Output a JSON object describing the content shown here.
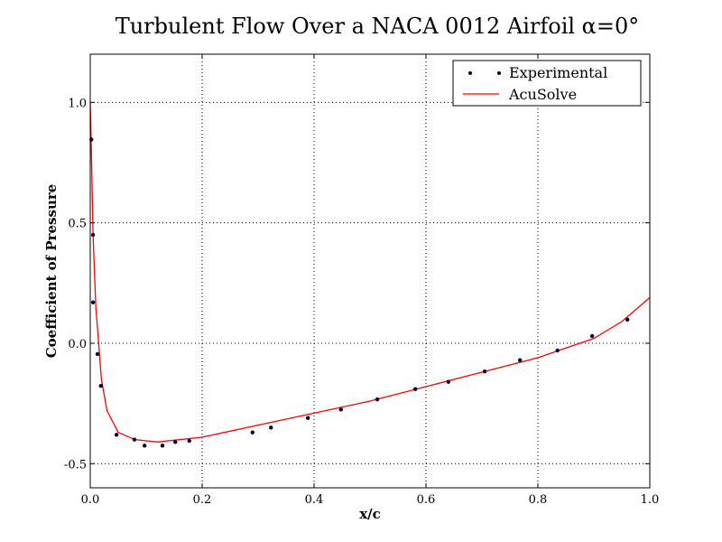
{
  "chart_data": {
    "type": "line",
    "title": "Turbulent Flow Over a NACA 0012 Airfoil α=0°",
    "xlabel": "x/c",
    "ylabel": "Coefficient of Pressure",
    "xlim": [
      0,
      1.0
    ],
    "ylim": [
      -0.6,
      1.2
    ],
    "grid": true,
    "legend_placement": "top-right",
    "xticks": [
      "0.0",
      "0.2",
      "0.4",
      "0.6",
      "0.8",
      "1.0"
    ],
    "xtick_values": [
      0,
      0.2,
      0.4,
      0.6,
      0.8,
      1.0
    ],
    "yticks": [
      "-0.5",
      "0.0",
      "0.5",
      "1.0"
    ],
    "ytick_values": [
      -0.5,
      0,
      0.5,
      1.0
    ],
    "series": [
      {
        "name": "Experimental",
        "kind": "scatter",
        "color": "#000033",
        "x": [
          0.002,
          0.005,
          0.005,
          0.013,
          0.019,
          0.047,
          0.079,
          0.097,
          0.129,
          0.152,
          0.177,
          0.29,
          0.323,
          0.389,
          0.448,
          0.513,
          0.581,
          0.64,
          0.705,
          0.768,
          0.835,
          0.897,
          0.96
        ],
        "y": [
          0.846,
          0.45,
          0.17,
          -0.045,
          -0.177,
          -0.38,
          -0.4,
          -0.425,
          -0.425,
          -0.41,
          -0.405,
          -0.37,
          -0.35,
          -0.31,
          -0.275,
          -0.233,
          -0.19,
          -0.16,
          -0.117,
          -0.07,
          -0.03,
          0.03,
          0.098
        ]
      },
      {
        "name": "AcuSolve",
        "kind": "line",
        "color": "#ff0000",
        "x": [
          0,
          0.002,
          0.005,
          0.01,
          0.02,
          0.03,
          0.05,
          0.08,
          0.12,
          0.2,
          0.3,
          0.4,
          0.5,
          0.6,
          0.7,
          0.8,
          0.9,
          0.95,
          1.0
        ],
        "y": [
          1.0,
          0.8,
          0.45,
          0.15,
          -0.15,
          -0.28,
          -0.37,
          -0.4,
          -0.41,
          -0.39,
          -0.34,
          -0.29,
          -0.24,
          -0.18,
          -0.12,
          -0.06,
          0.02,
          0.09,
          0.19
        ]
      }
    ]
  }
}
